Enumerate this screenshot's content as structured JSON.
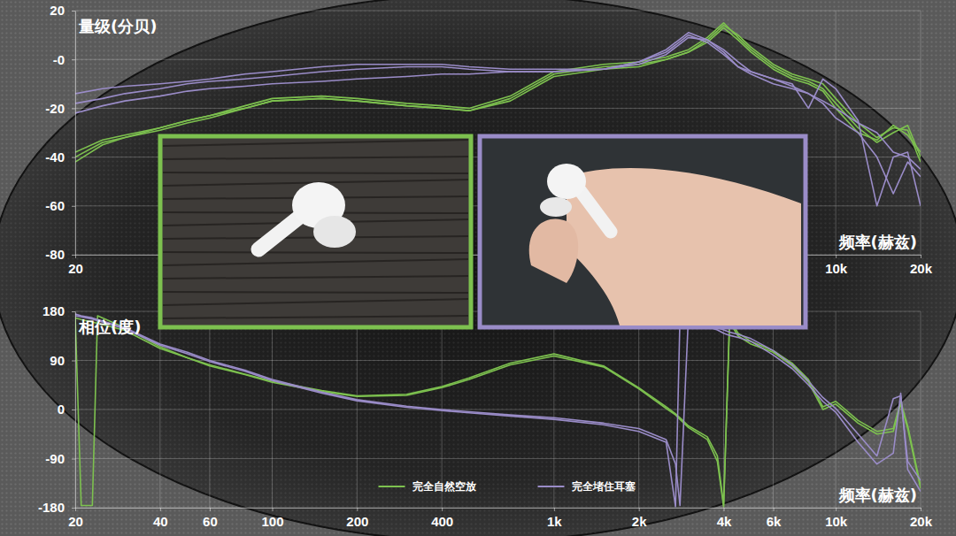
{
  "chart_data": [
    {
      "type": "line",
      "y_label": "量级(分贝)",
      "x_label": "频率(赫兹)",
      "log": "x",
      "grid": true,
      "x": [
        20,
        25,
        30,
        40,
        50,
        60,
        80,
        100,
        150,
        200,
        300,
        400,
        500,
        700,
        1000,
        1500,
        2000,
        2500,
        3000,
        3500,
        4000,
        4500,
        5000,
        6000,
        7000,
        8000,
        9000,
        10000,
        12000,
        14000,
        16000,
        18000,
        20000
      ],
      "xlim": [
        20,
        20000
      ],
      "xticks": [
        20,
        {
          "value": 10000,
          "label": "10k"
        },
        {
          "value": 20000,
          "label": "20k"
        }
      ],
      "ylim": [
        -80,
        20
      ],
      "yticks": [
        -80,
        -60,
        -40,
        -20,
        {
          "value": 0,
          "label": "-0"
        },
        20
      ],
      "series": [
        {
          "color": "#7dc14f",
          "values": [
            -42,
            -35,
            -32,
            -29,
            -26,
            -24,
            -20,
            -17,
            -16,
            -17,
            -19,
            -20,
            -21,
            -16,
            -6,
            -3,
            -2,
            0,
            3,
            8,
            14,
            10,
            5,
            -2,
            -6,
            -8,
            -10,
            -16,
            -26,
            -32,
            -28,
            -29,
            -42
          ]
        },
        {
          "color": "#7dc14f",
          "values": [
            -38,
            -33,
            -31,
            -28,
            -25,
            -23,
            -19,
            -16,
            -15,
            -16,
            -18,
            -19,
            -20,
            -15,
            -5,
            -2,
            -1,
            1,
            4,
            9,
            15,
            9,
            4,
            -3,
            -7,
            -9,
            -12,
            -18,
            -28,
            -34,
            -30,
            -27,
            -40
          ]
        },
        {
          "color": "#7dc14f",
          "values": [
            -40,
            -34,
            -32,
            -28,
            -25,
            -23,
            -20,
            -17,
            -16,
            -17,
            -19,
            -20,
            -21,
            -17,
            -7,
            -4,
            -3,
            0,
            3,
            7,
            13,
            8,
            3,
            -4,
            -8,
            -10,
            -13,
            -20,
            -30,
            -33,
            -27,
            -31,
            -38
          ]
        },
        {
          "color": "#9a8cc8",
          "values": [
            -14,
            -12,
            -11,
            -10,
            -9,
            -8,
            -6,
            -5,
            -3,
            -2,
            -2,
            -2,
            -3,
            -4,
            -4,
            -4,
            -2,
            2,
            9,
            8,
            3,
            -3,
            -6,
            -10,
            -12,
            -14,
            -18,
            -24,
            -30,
            -40,
            -55,
            -42,
            -48
          ]
        },
        {
          "color": "#9a8cc8",
          "values": [
            -22,
            -19,
            -17,
            -15,
            -13,
            -12,
            -11,
            -10,
            -9,
            -8,
            -7,
            -6,
            -6,
            -5,
            -5,
            -4,
            -1,
            3,
            10,
            7,
            2,
            -3,
            -5,
            -8,
            -10,
            -20,
            -8,
            -12,
            -25,
            -60,
            -40,
            -38,
            -60
          ]
        },
        {
          "color": "#9a8cc8",
          "values": [
            -18,
            -16,
            -14,
            -12,
            -10,
            -9,
            -8,
            -7,
            -5,
            -4,
            -3,
            -3,
            -4,
            -5,
            -5,
            -4,
            -1,
            4,
            11,
            8,
            4,
            -1,
            -5,
            -8,
            -11,
            -14,
            -17,
            -20,
            -26,
            -30,
            -38,
            -40,
            -45
          ]
        }
      ]
    },
    {
      "type": "line",
      "y_label": "相位(度)",
      "x_label": "频率(赫兹)",
      "log": "x",
      "grid": true,
      "legend": "bottom",
      "x": [
        20,
        21,
        23,
        24,
        30,
        40,
        50,
        60,
        80,
        100,
        150,
        200,
        300,
        400,
        500,
        700,
        1000,
        1500,
        2000,
        2500,
        2700,
        2800,
        3000,
        3500,
        3800,
        4000,
        4200,
        4500,
        5000,
        6000,
        7000,
        8000,
        9000,
        10000,
        12000,
        14000,
        16000,
        17000,
        18000,
        20000
      ],
      "xlim": [
        20,
        20000
      ],
      "xticks": [
        20,
        40,
        60,
        100,
        200,
        400,
        {
          "value": 1000,
          "label": "1k"
        },
        {
          "value": 2000,
          "label": "2k"
        },
        {
          "value": 4000,
          "label": "4k"
        },
        {
          "value": 6000,
          "label": "6k"
        },
        {
          "value": 10000,
          "label": "10k"
        },
        {
          "value": 20000,
          "label": "20k"
        }
      ],
      "ylim": [
        -180,
        180
      ],
      "yticks": [
        -180,
        -90,
        0,
        90,
        180
      ],
      "series": [
        {
          "name": "完全自然空放",
          "color": "#7dc14f",
          "values": [
            170,
            -176,
            -176,
            172,
            150,
            115,
            95,
            82,
            65,
            52,
            35,
            25,
            28,
            42,
            58,
            85,
            102,
            80,
            40,
            5,
            -8,
            -15,
            -30,
            -50,
            -85,
            -175,
            165,
            140,
            125,
            108,
            85,
            55,
            5,
            15,
            -20,
            -40,
            -35,
            15,
            -30,
            -140
          ]
        },
        {
          "color": "#7dc14f",
          "values": [
            168,
            165,
            160,
            158,
            145,
            112,
            95,
            80,
            64,
            50,
            33,
            24,
            26,
            40,
            55,
            82,
            98,
            78,
            38,
            2,
            -10,
            -18,
            -33,
            -55,
            -95,
            -178,
            160,
            135,
            120,
            105,
            80,
            50,
            0,
            10,
            -25,
            -45,
            -40,
            10,
            -35,
            -145
          ]
        },
        {
          "name": "完全堵住耳塞",
          "color": "#9a8cc8",
          "values": [
            175,
            172,
            168,
            165,
            150,
            120,
            105,
            90,
            72,
            55,
            32,
            18,
            6,
            0,
            -4,
            -10,
            -15,
            -25,
            -35,
            -55,
            -100,
            -176,
            172,
            158,
            150,
            146,
            142,
            138,
            130,
            108,
            82,
            52,
            22,
            2,
            -45,
            -85,
            20,
            25,
            -95,
            -130
          ]
        },
        {
          "color": "#9a8cc8",
          "values": [
            172,
            170,
            166,
            163,
            148,
            118,
            102,
            88,
            70,
            53,
            30,
            16,
            4,
            -2,
            -6,
            -12,
            -18,
            -28,
            -40,
            -60,
            -178,
            170,
            162,
            152,
            146,
            140,
            136,
            132,
            125,
            100,
            75,
            45,
            15,
            -5,
            -60,
            -100,
            -80,
            30,
            -110,
            -150
          ]
        }
      ]
    }
  ]
}
